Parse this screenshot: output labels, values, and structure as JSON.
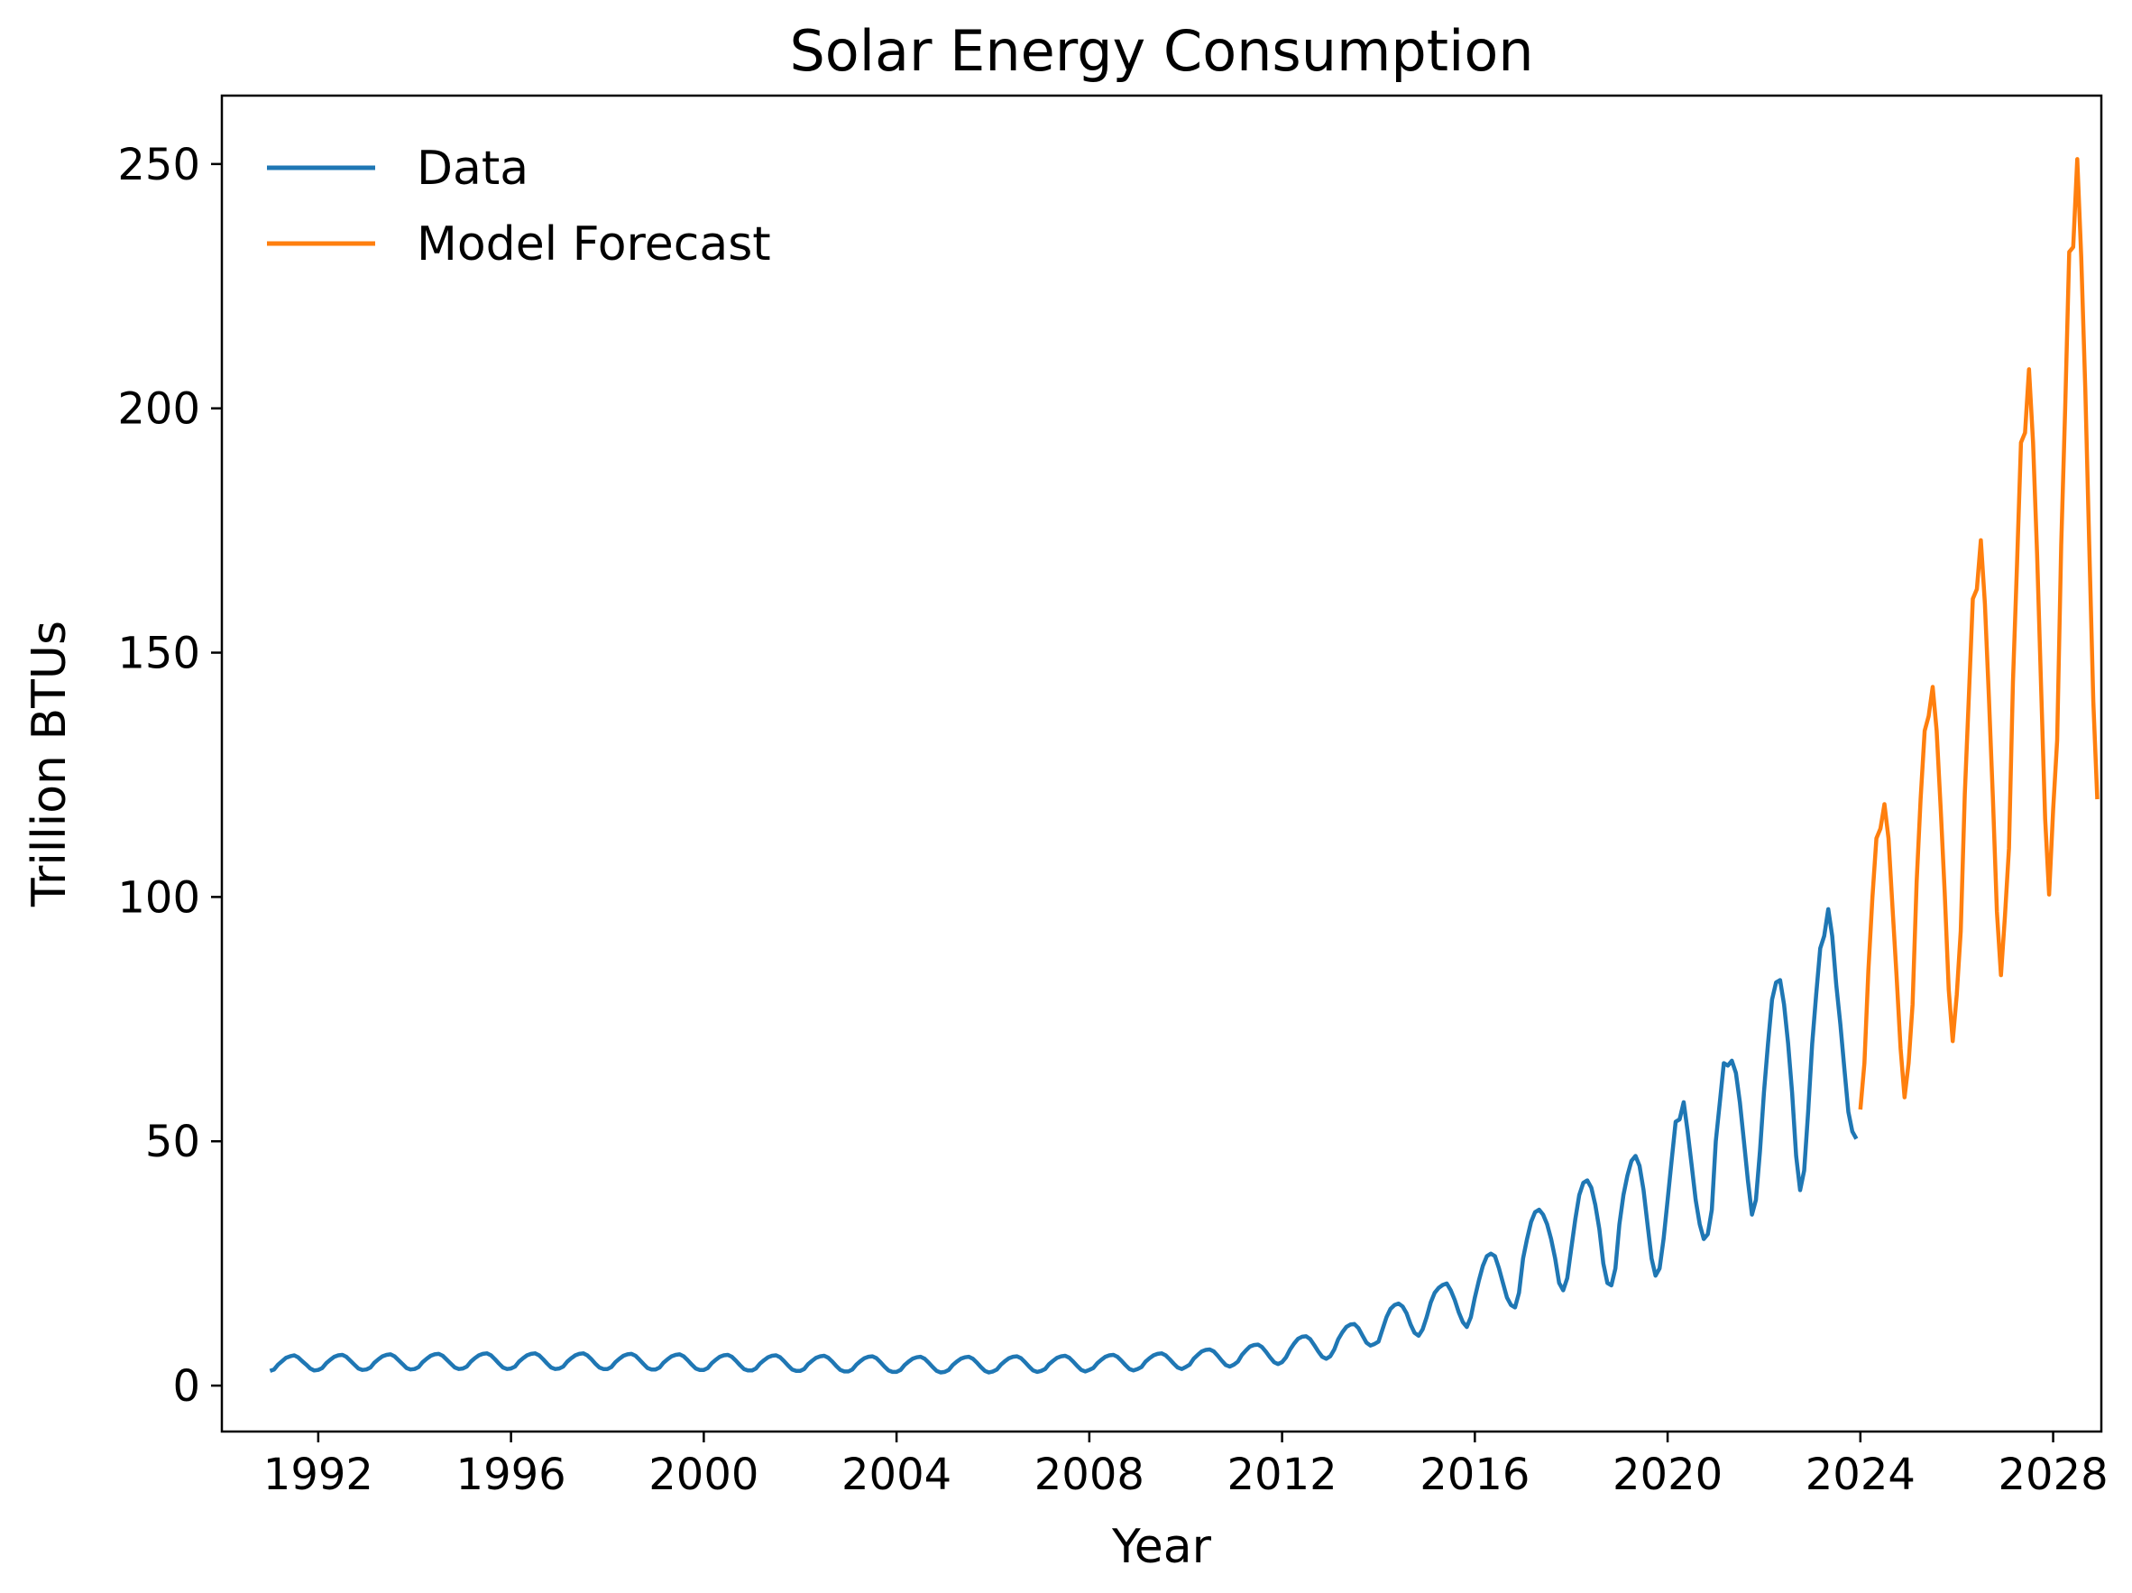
{
  "chart_data": {
    "type": "line",
    "title": "Solar Energy Consumption",
    "xlabel": "Year",
    "ylabel": "Trillion BTUs",
    "xlim": [
      1990,
      2029
    ],
    "ylim": [
      -9.4,
      264
    ],
    "x_ticks": [
      "1992",
      "1996",
      "2000",
      "2004",
      "2008",
      "2012",
      "2016",
      "2020",
      "2024",
      "2028"
    ],
    "y_ticks": [
      "0",
      "50",
      "100",
      "150",
      "200",
      "250"
    ],
    "grid": false,
    "legend_position": "top-left",
    "series": [
      {
        "name": "Data",
        "color": "#1f77b4",
        "start_year": 1991.0,
        "step": "monthly",
        "description_values_by_year": {
          "1991": [
            3.0,
            3.3,
            4.3,
            5.0,
            5.7,
            6.0,
            6.2,
            5.8,
            5.0,
            4.3,
            3.5,
            3.1
          ],
          "1992": [
            3.2,
            3.6,
            4.6,
            5.3,
            5.9,
            6.2,
            6.3,
            5.9,
            5.1,
            4.3,
            3.5,
            3.2
          ],
          "1993": [
            3.3,
            3.7,
            4.7,
            5.4,
            6.0,
            6.3,
            6.4,
            6.0,
            5.2,
            4.4,
            3.6,
            3.3
          ],
          "1994": [
            3.4,
            3.8,
            4.8,
            5.5,
            6.1,
            6.4,
            6.5,
            6.1,
            5.3,
            4.5,
            3.7,
            3.4
          ],
          "1995": [
            3.5,
            3.9,
            4.9,
            5.6,
            6.2,
            6.5,
            6.6,
            6.2,
            5.4,
            4.5,
            3.7,
            3.4
          ],
          "1996": [
            3.5,
            3.9,
            4.9,
            5.6,
            6.2,
            6.5,
            6.6,
            6.2,
            5.4,
            4.5,
            3.7,
            3.4
          ],
          "1997": [
            3.5,
            3.9,
            4.9,
            5.6,
            6.2,
            6.5,
            6.6,
            6.2,
            5.4,
            4.5,
            3.7,
            3.4
          ],
          "1998": [
            3.4,
            3.8,
            4.8,
            5.5,
            6.1,
            6.4,
            6.5,
            6.1,
            5.3,
            4.4,
            3.6,
            3.3
          ],
          "1999": [
            3.3,
            3.7,
            4.7,
            5.4,
            6.0,
            6.3,
            6.4,
            6.0,
            5.2,
            4.3,
            3.5,
            3.2
          ],
          "2000": [
            3.2,
            3.6,
            4.6,
            5.3,
            5.9,
            6.2,
            6.3,
            5.9,
            5.1,
            4.2,
            3.4,
            3.1
          ],
          "2001": [
            3.1,
            3.5,
            4.5,
            5.2,
            5.8,
            6.1,
            6.2,
            5.8,
            5.0,
            4.1,
            3.3,
            3.0
          ],
          "2002": [
            3.0,
            3.4,
            4.4,
            5.1,
            5.7,
            6.0,
            6.1,
            5.7,
            4.9,
            4.0,
            3.2,
            2.9
          ],
          "2003": [
            2.9,
            3.3,
            4.3,
            5.0,
            5.6,
            5.9,
            6.0,
            5.6,
            4.8,
            3.9,
            3.1,
            2.8
          ],
          "2004": [
            2.8,
            3.2,
            4.2,
            4.9,
            5.5,
            5.8,
            5.9,
            5.5,
            4.7,
            3.8,
            3.0,
            2.7
          ],
          "2005": [
            2.8,
            3.2,
            4.2,
            4.9,
            5.5,
            5.8,
            5.9,
            5.5,
            4.7,
            3.8,
            3.0,
            2.7
          ],
          "2006": [
            2.9,
            3.3,
            4.3,
            5.0,
            5.6,
            5.9,
            6.0,
            5.6,
            4.8,
            3.9,
            3.1,
            2.8
          ],
          "2007": [
            3.0,
            3.4,
            4.4,
            5.1,
            5.7,
            6.0,
            6.1,
            5.7,
            4.9,
            4.0,
            3.2,
            2.9
          ],
          "2008": [
            3.2,
            3.6,
            4.6,
            5.3,
            5.9,
            6.2,
            6.3,
            5.9,
            5.1,
            4.2,
            3.4,
            3.1
          ],
          "2009": [
            3.4,
            3.8,
            4.9,
            5.6,
            6.2,
            6.5,
            6.6,
            6.2,
            5.4,
            4.5,
            3.7,
            3.4
          ],
          "2010": [
            3.8,
            4.3,
            5.5,
            6.3,
            7.0,
            7.3,
            7.4,
            7.0,
            6.1,
            5.1,
            4.2,
            3.9
          ],
          "2011": [
            4.3,
            4.9,
            6.3,
            7.2,
            8.0,
            8.3,
            8.4,
            7.9,
            6.9,
            5.8,
            4.8,
            4.4
          ],
          "2012": [
            4.8,
            5.8,
            7.4,
            8.6,
            9.6,
            10.0,
            10.1,
            9.5,
            8.3,
            7.0,
            5.9,
            5.5
          ],
          "2013": [
            6.0,
            7.4,
            9.5,
            10.9,
            12.0,
            12.5,
            12.6,
            11.8,
            10.3,
            8.8,
            8.2,
            8.5
          ],
          "2014": [
            9.0,
            11.5,
            14.0,
            15.7,
            16.5,
            16.8,
            16.2,
            14.8,
            12.5,
            10.8,
            10.2,
            11.5
          ],
          "2015": [
            14.0,
            17.0,
            19.0,
            20.0,
            20.6,
            20.9,
            19.5,
            17.5,
            15.0,
            13.0,
            12.0,
            14.0
          ],
          "2016": [
            18.0,
            21.5,
            24.5,
            26.5,
            27.0,
            26.5,
            24.0,
            21.0,
            18.0,
            16.5,
            16.0,
            19.0
          ],
          "2017": [
            26.0,
            30.0,
            33.5,
            35.5,
            36.0,
            35.0,
            33.0,
            30.0,
            26.0,
            21.0,
            19.5,
            22.0
          ],
          "2018": [
            28.0,
            34.0,
            39.0,
            41.5,
            42.0,
            40.5,
            37.0,
            32.0,
            25.0,
            21.0,
            20.5,
            24.0
          ],
          "2019": [
            33.0,
            39.0,
            43.0,
            46.0,
            47.0,
            45.0,
            40.0,
            33.0,
            26.0,
            22.5,
            24.0,
            30.0
          ],
          "2020": [
            38.0,
            46.0,
            54.0,
            54.5,
            58.0,
            52.0,
            45.0,
            38.0,
            33.0,
            30.0,
            31.0,
            36.0
          ],
          "2021": [
            50.0,
            58.0,
            66.0,
            65.5,
            66.5,
            64.0,
            58.0,
            50.0,
            42.0,
            35.0,
            38.0,
            48.0
          ],
          "2022": [
            60.0,
            70.0,
            79.0,
            82.5,
            83.0,
            78.0,
            70.0,
            60.0,
            47.0,
            40.0,
            44.0,
            56.0
          ],
          "2023": [
            70.0,
            80.0,
            89.5,
            92.0,
            97.5,
            92.0,
            82.0,
            74.0,
            65.0,
            56.0,
            52.0,
            50.5
          ]
        }
      },
      {
        "name": "Model Forecast",
        "color": "#ff7f0e",
        "start_year": 2024.0,
        "step": "monthly",
        "description_values_by_year": {
          "2024": [
            56.5,
            66.0,
            85.0,
            100.0,
            112.0,
            114.0,
            119.0,
            112.0,
            98.0,
            84.0,
            69.0,
            59.0
          ],
          "2025": [
            66.0,
            78.0,
            103.0,
            120.0,
            134.0,
            137.0,
            143.0,
            134.0,
            118.0,
            101.0,
            81.0,
            70.5
          ],
          "2026": [
            80.0,
            93.0,
            121.0,
            141.0,
            161.0,
            163.0,
            173.0,
            160.0,
            141.0,
            120.0,
            97.0,
            84.0
          ],
          "2027": [
            96.0,
            110.0,
            144.0,
            168.0,
            193.0,
            195.0,
            208.0,
            193.0,
            170.0,
            143.0,
            116.0,
            100.5
          ],
          "2028": [
            118.0,
            132.0,
            172.0,
            200.0,
            232.0,
            233.0,
            251.0,
            231.0,
            204.0,
            172.0,
            140.0,
            120.0
          ]
        }
      }
    ]
  }
}
